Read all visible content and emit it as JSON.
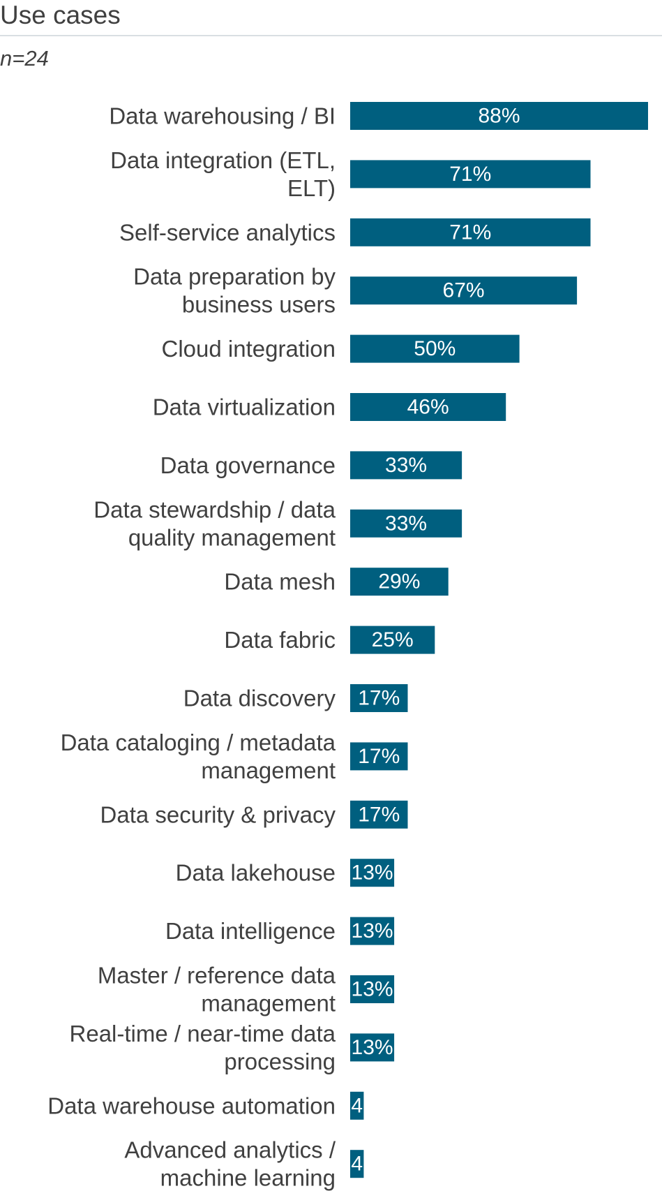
{
  "title": "Use cases",
  "subtitle": "n=24",
  "colors": {
    "bar": "#005f7f",
    "text": "#404040",
    "rule": "#d9dfe2",
    "value_text": "#ffffff"
  },
  "chart_data": {
    "type": "bar",
    "orientation": "horizontal",
    "title": "Use cases",
    "subtitle": "n=24",
    "xlim": [
      0,
      88
    ],
    "grid": false,
    "legend": "none",
    "categories": [
      [
        "Data warehousing / BI"
      ],
      [
        "Data integration (ETL,",
        "ELT)"
      ],
      [
        "Self-service analytics"
      ],
      [
        "Data preparation by",
        "business users"
      ],
      [
        "Cloud integration"
      ],
      [
        "Data virtualization"
      ],
      [
        "Data governance"
      ],
      [
        "Data stewardship / data",
        "quality management"
      ],
      [
        "Data mesh"
      ],
      [
        "Data fabric"
      ],
      [
        "Data discovery"
      ],
      [
        "Data cataloging / metadata",
        "management"
      ],
      [
        "Data security & privacy"
      ],
      [
        "Data lakehouse"
      ],
      [
        "Data intelligence"
      ],
      [
        "Master / reference data",
        "management"
      ],
      [
        "Real-time / near-time data",
        "processing"
      ],
      [
        "Data warehouse automation"
      ],
      [
        "Advanced analytics /",
        "machine learning"
      ]
    ],
    "values": [
      88,
      71,
      71,
      67,
      50,
      46,
      33,
      33,
      29,
      25,
      17,
      17,
      17,
      13,
      13,
      13,
      13,
      4,
      4
    ],
    "value_labels": [
      "88%",
      "71%",
      "71%",
      "67%",
      "50%",
      "46%",
      "33%",
      "33%",
      "29%",
      "25%",
      "17%",
      "17%",
      "17%",
      "13%",
      "13%",
      "13%",
      "13%",
      "4",
      "4"
    ]
  }
}
